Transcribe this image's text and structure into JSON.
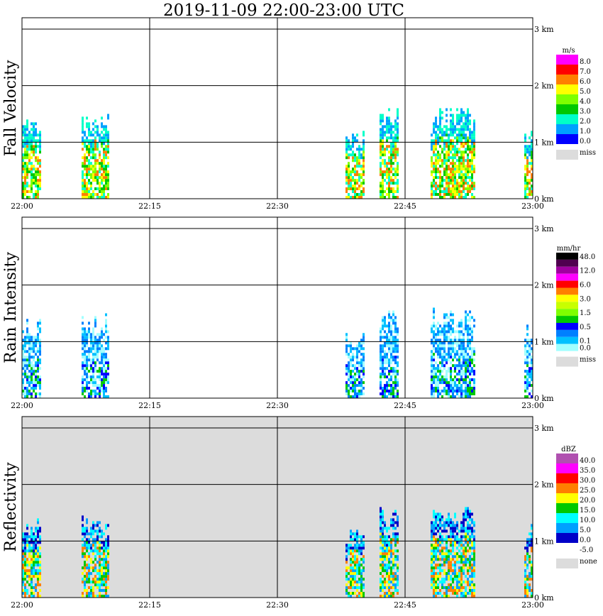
{
  "title": "2019-11-09   22:00-23:00 UTC",
  "x_ticks": [
    "22:00",
    "22:15",
    "22:30",
    "22:45",
    "23:00"
  ],
  "y_ticks": [
    "0 km",
    "1 km",
    "2 km",
    "3 km"
  ],
  "colors": {
    "missing": "#dcdcdc",
    "grid": "#000000",
    "background": "#ffffff"
  },
  "chart_data": [
    {
      "type": "heatmap",
      "ylabel": "Fall Velocity",
      "x_range": [
        "22:00",
        "23:00"
      ],
      "ylim_km": [
        0,
        3.2
      ],
      "legend": {
        "unit": "m/s",
        "entries": [
          {
            "label": "8.0",
            "color": "#ff00ff"
          },
          {
            "label": "7.0",
            "color": "#ff0000"
          },
          {
            "label": "6.0",
            "color": "#ff7f00"
          },
          {
            "label": "5.0",
            "color": "#ffff00"
          },
          {
            "label": "4.0",
            "color": "#7fff00"
          },
          {
            "label": "3.0",
            "color": "#00c800"
          },
          {
            "label": "2.0",
            "color": "#00ffc8"
          },
          {
            "label": "1.0",
            "color": "#00a0ff"
          },
          {
            "label": "0.0",
            "color": "#0000ff"
          }
        ],
        "miss_label": "miss"
      },
      "echoes": [
        {
          "start": "22:00",
          "end": "22:02",
          "top_km": 1.4
        },
        {
          "start": "22:07",
          "end": "22:10",
          "top_km": 1.5
        },
        {
          "start": "22:38",
          "end": "22:40",
          "top_km": 1.2
        },
        {
          "start": "22:42",
          "end": "22:44",
          "top_km": 1.6
        },
        {
          "start": "22:48",
          "end": "22:53",
          "top_km": 1.6
        },
        {
          "start": "22:59",
          "end": "23:00",
          "top_km": 1.3
        }
      ]
    },
    {
      "type": "heatmap",
      "ylabel": "Rain Intensity",
      "x_range": [
        "22:00",
        "23:00"
      ],
      "ylim_km": [
        0,
        3.2
      ],
      "legend": {
        "unit": "mm/hr",
        "entries": [
          {
            "label": "48.0",
            "color": "#000000"
          },
          {
            "label": "",
            "color": "#500050"
          },
          {
            "label": "12.0",
            "color": "#a000a0"
          },
          {
            "label": "",
            "color": "#ff00ff"
          },
          {
            "label": "6.0",
            "color": "#ff0000"
          },
          {
            "label": "",
            "color": "#ff7f00"
          },
          {
            "label": "3.0",
            "color": "#ffff00"
          },
          {
            "label": "",
            "color": "#c8ff00"
          },
          {
            "label": "1.5",
            "color": "#7fff00"
          },
          {
            "label": "",
            "color": "#00c800"
          },
          {
            "label": "0.5",
            "color": "#0000ff"
          },
          {
            "label": "",
            "color": "#0080ff"
          },
          {
            "label": "0.1",
            "color": "#00c0ff"
          },
          {
            "label": "0.0",
            "color": "#a0ffff"
          }
        ],
        "miss_label": "miss"
      },
      "echoes": [
        {
          "start": "22:00",
          "end": "22:02",
          "top_km": 1.4
        },
        {
          "start": "22:07",
          "end": "22:10",
          "top_km": 1.5
        },
        {
          "start": "22:38",
          "end": "22:40",
          "top_km": 1.2
        },
        {
          "start": "22:42",
          "end": "22:44",
          "top_km": 1.6
        },
        {
          "start": "22:48",
          "end": "22:53",
          "top_km": 1.6
        },
        {
          "start": "22:59",
          "end": "23:00",
          "top_km": 1.3
        }
      ]
    },
    {
      "type": "heatmap",
      "ylabel": "Reflectivity",
      "x_range": [
        "22:00",
        "23:00"
      ],
      "ylim_km": [
        0,
        3.2
      ],
      "legend": {
        "unit": "dBZ",
        "entries": [
          {
            "label": "40.0",
            "color": "#b050b0"
          },
          {
            "label": "35.0",
            "color": "#ff00ff"
          },
          {
            "label": "30.0",
            "color": "#ff0000"
          },
          {
            "label": "25.0",
            "color": "#ff7f00"
          },
          {
            "label": "20.0",
            "color": "#ffff00"
          },
          {
            "label": "15.0",
            "color": "#00c800"
          },
          {
            "label": "10.0",
            "color": "#00ffff"
          },
          {
            "label": "5.0",
            "color": "#00a0ff"
          },
          {
            "label": "0.0",
            "color": "#0000c8"
          },
          {
            "label": "-5.0",
            "color": "#ffffff"
          }
        ],
        "miss_label": "none"
      },
      "echoes": [
        {
          "start": "22:00",
          "end": "22:02",
          "top_km": 1.4
        },
        {
          "start": "22:07",
          "end": "22:10",
          "top_km": 1.5
        },
        {
          "start": "22:38",
          "end": "22:40",
          "top_km": 1.2
        },
        {
          "start": "22:42",
          "end": "22:44",
          "top_km": 1.6
        },
        {
          "start": "22:48",
          "end": "22:53",
          "top_km": 1.6
        },
        {
          "start": "22:59",
          "end": "23:00",
          "top_km": 1.3
        }
      ]
    }
  ]
}
